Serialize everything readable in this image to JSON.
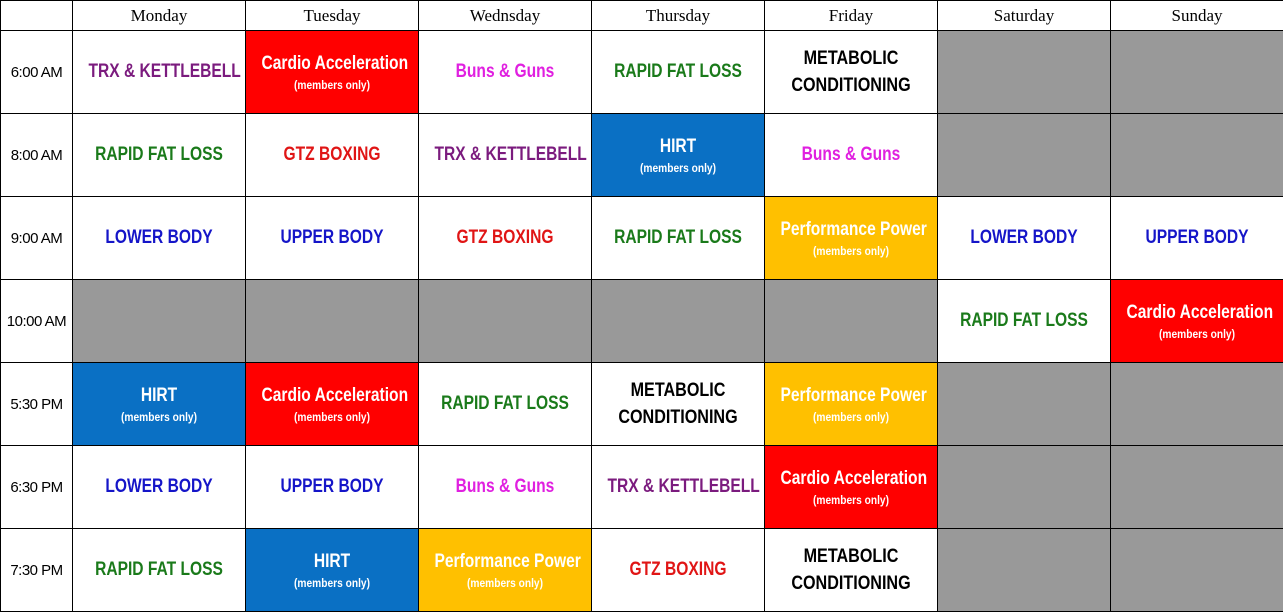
{
  "days": [
    "Monday",
    "Tuesday",
    "Wednsday",
    "Thursday",
    "Friday",
    "Saturday",
    "Sunday"
  ],
  "colors": {
    "trx": "#7b1b7e",
    "rapid": "#1a7a1a",
    "buns": "#e020e0",
    "upper_lower": "#1515c8",
    "gtz": "#e01515",
    "metabolic": "#000000",
    "cardio_bg": "#ff0000",
    "hirt_bg": "#0a70c4",
    "perf_bg": "#ffc000",
    "empty_bg": "#999999"
  },
  "rows": [
    {
      "time": "6:00 AM",
      "cells": [
        {
          "name": "TRX & KETTLEBELL",
          "style": "trx"
        },
        {
          "name": "Cardio Acceleration",
          "note": "(members only)",
          "style": "cardio"
        },
        {
          "name": "Buns & Guns",
          "style": "buns"
        },
        {
          "name": "RAPID FAT LOSS",
          "style": "rapid"
        },
        {
          "name": "METABOLIC CONDITIONING",
          "style": "metabolic"
        },
        {
          "style": "empty"
        },
        {
          "style": "empty"
        }
      ]
    },
    {
      "time": "8:00 AM",
      "cells": [
        {
          "name": "RAPID FAT LOSS",
          "style": "rapid"
        },
        {
          "name": "GTZ BOXING",
          "style": "gtz"
        },
        {
          "name": "TRX & KETTLEBELL",
          "style": "trx"
        },
        {
          "name": "HIRT",
          "note": "(members only)",
          "style": "hirt"
        },
        {
          "name": "Buns & Guns",
          "style": "buns"
        },
        {
          "style": "empty"
        },
        {
          "style": "empty"
        }
      ]
    },
    {
      "time": "9:00 AM",
      "cells": [
        {
          "name": "LOWER BODY",
          "style": "upper_lower"
        },
        {
          "name": "UPPER BODY",
          "style": "upper_lower"
        },
        {
          "name": "GTZ BOXING",
          "style": "gtz"
        },
        {
          "name": "RAPID FAT LOSS",
          "style": "rapid"
        },
        {
          "name": "Performance Power",
          "note": "(members only)",
          "style": "perf"
        },
        {
          "name": "LOWER BODY",
          "style": "upper_lower"
        },
        {
          "name": "UPPER BODY",
          "style": "upper_lower"
        }
      ]
    },
    {
      "time": "10:00 AM",
      "cells": [
        {
          "style": "empty"
        },
        {
          "style": "empty"
        },
        {
          "style": "empty"
        },
        {
          "style": "empty"
        },
        {
          "style": "empty"
        },
        {
          "name": "RAPID FAT LOSS",
          "style": "rapid"
        },
        {
          "name": "Cardio Acceleration",
          "note": "(members only)",
          "style": "cardio"
        }
      ]
    },
    {
      "time": "5:30 PM",
      "cells": [
        {
          "name": "HIRT",
          "note": "(members only)",
          "style": "hirt"
        },
        {
          "name": "Cardio Acceleration",
          "note": "(members only)",
          "style": "cardio"
        },
        {
          "name": "RAPID FAT LOSS",
          "style": "rapid"
        },
        {
          "name": "METABOLIC CONDITIONING",
          "style": "metabolic"
        },
        {
          "name": "Performance Power",
          "note": "(members only)",
          "style": "perf"
        },
        {
          "style": "empty"
        },
        {
          "style": "empty"
        }
      ]
    },
    {
      "time": "6:30 PM",
      "cells": [
        {
          "name": "LOWER BODY",
          "style": "upper_lower"
        },
        {
          "name": "UPPER BODY",
          "style": "upper_lower"
        },
        {
          "name": "Buns & Guns",
          "style": "buns"
        },
        {
          "name": "TRX & KETTLEBELL",
          "style": "trx"
        },
        {
          "name": "Cardio Acceleration",
          "note": "(members only)",
          "style": "cardio"
        },
        {
          "style": "empty"
        },
        {
          "style": "empty"
        }
      ]
    },
    {
      "time": "7:30 PM",
      "cells": [
        {
          "name": "RAPID FAT LOSS",
          "style": "rapid"
        },
        {
          "name": "HIRT",
          "note": "(members only)",
          "style": "hirt"
        },
        {
          "name": "Performance Power",
          "note": "(members only)",
          "style": "perf"
        },
        {
          "name": "GTZ BOXING",
          "style": "gtz"
        },
        {
          "name": "METABOLIC CONDITIONING",
          "style": "metabolic"
        },
        {
          "style": "empty"
        },
        {
          "style": "empty"
        }
      ]
    }
  ]
}
